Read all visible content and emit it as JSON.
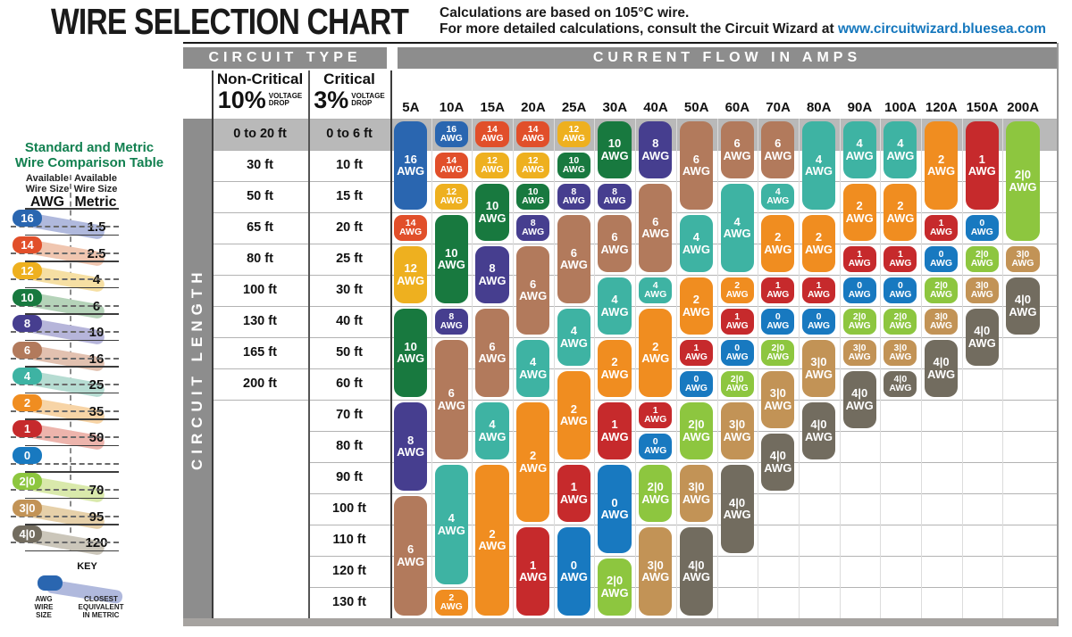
{
  "title": "WIRE SELECTION CHART",
  "subtitle": {
    "line1": "Calculations are based on 105°C wire.",
    "line2_prefix": "For more detailed calculations, consult the Circuit Wizard at ",
    "link": "www.circuitwizard.bluesea.com"
  },
  "header": {
    "circuit_type": "CIRCUIT TYPE",
    "current_flow": "CURRENT FLOW IN AMPS",
    "non_critical_title": "Non-Critical",
    "non_critical_pct": "10%",
    "critical_title": "Critical",
    "critical_pct": "3%",
    "voltage_word": "VOLTAGE",
    "drop_word": "DROP"
  },
  "sidebar": {
    "label": "CIRCUIT LENGTH"
  },
  "colors": {
    "header_bar": "#8d8d8d",
    "row_band": "#b9b9b9",
    "grid_line": "#b3b3b3",
    "link": "#1577bd",
    "comparison_title_green": "#128050",
    "bottom_bar": "#a6a3a0"
  },
  "comparison_table": {
    "title_line1": "Standard and Metric",
    "title_line2": "Wire Comparison Table",
    "header_available": "Available",
    "header_wire_size": "Wire Size",
    "header_awg": "AWG",
    "header_metric": "Metric",
    "rows": [
      {
        "awg": "16",
        "metric": "1.5"
      },
      {
        "awg": "14",
        "metric": "2.5"
      },
      {
        "awg": "12",
        "metric": "4"
      },
      {
        "awg": "10",
        "metric": "6"
      },
      {
        "awg": "8",
        "metric": "10"
      },
      {
        "awg": "6",
        "metric": "16"
      },
      {
        "awg": "4",
        "metric": "25"
      },
      {
        "awg": "2",
        "metric": "35"
      },
      {
        "awg": "1",
        "metric": "50"
      },
      {
        "awg": "0",
        "metric": ""
      },
      {
        "awg": "2|0",
        "metric": "70"
      },
      {
        "awg": "3|0",
        "metric": "95"
      },
      {
        "awg": "4|0",
        "metric": "120"
      }
    ],
    "key": {
      "title": "KEY",
      "awg_line1": "AWG",
      "awg_line2": "WIRE",
      "awg_line3": "SIZE",
      "metric_line1": "CLOSEST",
      "metric_line2": "EQUIVALENT",
      "metric_line3": "IN METRIC"
    }
  },
  "chart_data": {
    "type": "table",
    "title": "WIRE SELECTION CHART",
    "xlabel": "CURRENT FLOW IN AMPS",
    "ylabel": "CIRCUIT LENGTH",
    "amp_columns": [
      "5A",
      "10A",
      "15A",
      "20A",
      "25A",
      "30A",
      "40A",
      "50A",
      "60A",
      "70A",
      "80A",
      "90A",
      "100A",
      "120A",
      "150A",
      "200A"
    ],
    "non_critical_lengths": [
      "0 to 20 ft",
      "30 ft",
      "50 ft",
      "65 ft",
      "80 ft",
      "100 ft",
      "130 ft",
      "165 ft",
      "200 ft"
    ],
    "critical_lengths": [
      "0 to 6 ft",
      "10 ft",
      "15 ft",
      "20 ft",
      "25 ft",
      "30 ft",
      "40 ft",
      "50 ft",
      "60 ft",
      "70 ft",
      "80 ft",
      "90 ft",
      "100 ft",
      "110 ft",
      "120 ft",
      "130 ft"
    ],
    "awg_unit_label": "AWG",
    "wire_colors": {
      "16": "#2a66b0",
      "14": "#e14f2a",
      "12": "#eeb01f",
      "10": "#18793f",
      "8": "#463e8f",
      "6": "#b27a5c",
      "4": "#3eb3a3",
      "2": "#f08d20",
      "1": "#c62a2c",
      "0": "#1879c0",
      "2|0": "#8dc63f",
      "3|0": "#c29356",
      "4|0": "#726c5f"
    },
    "wire_tints": {
      "16": "#b0b9dd",
      "14": "#f0c6b0",
      "12": "#f6dfa3",
      "10": "#b5d3b9",
      "8": "#b6b5da",
      "6": "#e2c1b0",
      "4": "#b6dcd2",
      "2": "#f7d4a6",
      "1": "#edb4ac",
      "0": "#abc6e6",
      "2|0": "#d9e9ab",
      "3|0": "#e6d0a9",
      "4|0": "#cbc6ba"
    },
    "columns": [
      {
        "amps": "5A",
        "segments": [
          {
            "awg": "16",
            "from": 1,
            "to": 3
          },
          {
            "awg": "14",
            "from": 4,
            "to": 4
          },
          {
            "awg": "12",
            "from": 5,
            "to": 6
          },
          {
            "awg": "10",
            "from": 7,
            "to": 9
          },
          {
            "awg": "8",
            "from": 10,
            "to": 12
          },
          {
            "awg": "6",
            "from": 13,
            "to": 16
          }
        ]
      },
      {
        "amps": "10A",
        "segments": [
          {
            "awg": "16",
            "from": 1,
            "to": 1
          },
          {
            "awg": "14",
            "from": 2,
            "to": 2
          },
          {
            "awg": "12",
            "from": 3,
            "to": 3
          },
          {
            "awg": "10",
            "from": 4,
            "to": 6
          },
          {
            "awg": "8",
            "from": 7,
            "to": 7
          },
          {
            "awg": "6",
            "from": 8,
            "to": 11
          },
          {
            "awg": "4",
            "from": 12,
            "to": 15
          },
          {
            "awg": "2",
            "from": 16,
            "to": 16
          }
        ]
      },
      {
        "amps": "15A",
        "segments": [
          {
            "awg": "14",
            "from": 1,
            "to": 1
          },
          {
            "awg": "12",
            "from": 2,
            "to": 2
          },
          {
            "awg": "10",
            "from": 3,
            "to": 4
          },
          {
            "awg": "8",
            "from": 5,
            "to": 6
          },
          {
            "awg": "6",
            "from": 7,
            "to": 9
          },
          {
            "awg": "4",
            "from": 10,
            "to": 11
          },
          {
            "awg": "2",
            "from": 12,
            "to": 16
          }
        ]
      },
      {
        "amps": "20A",
        "segments": [
          {
            "awg": "14",
            "from": 1,
            "to": 1
          },
          {
            "awg": "12",
            "from": 2,
            "to": 2
          },
          {
            "awg": "10",
            "from": 3,
            "to": 3
          },
          {
            "awg": "8",
            "from": 4,
            "to": 4
          },
          {
            "awg": "6",
            "from": 5,
            "to": 7
          },
          {
            "awg": "4",
            "from": 8,
            "to": 9
          },
          {
            "awg": "2",
            "from": 10,
            "to": 13
          },
          {
            "awg": "1",
            "from": 14,
            "to": 16
          }
        ]
      },
      {
        "amps": "25A",
        "segments": [
          {
            "awg": "12",
            "from": 1,
            "to": 1
          },
          {
            "awg": "10",
            "from": 2,
            "to": 2
          },
          {
            "awg": "8",
            "from": 3,
            "to": 3
          },
          {
            "awg": "6",
            "from": 4,
            "to": 6
          },
          {
            "awg": "4",
            "from": 7,
            "to": 8
          },
          {
            "awg": "2",
            "from": 9,
            "to": 11
          },
          {
            "awg": "1",
            "from": 12,
            "to": 13
          },
          {
            "awg": "0",
            "from": 14,
            "to": 16
          }
        ]
      },
      {
        "amps": "30A",
        "segments": [
          {
            "awg": "10",
            "from": 1,
            "to": 2
          },
          {
            "awg": "8",
            "from": 3,
            "to": 3
          },
          {
            "awg": "6",
            "from": 4,
            "to": 5
          },
          {
            "awg": "4",
            "from": 6,
            "to": 7
          },
          {
            "awg": "2",
            "from": 8,
            "to": 9
          },
          {
            "awg": "1",
            "from": 10,
            "to": 11
          },
          {
            "awg": "0",
            "from": 12,
            "to": 14
          },
          {
            "awg": "2|0",
            "from": 15,
            "to": 16
          }
        ]
      },
      {
        "amps": "40A",
        "segments": [
          {
            "awg": "8",
            "from": 1,
            "to": 2
          },
          {
            "awg": "6",
            "from": 3,
            "to": 5
          },
          {
            "awg": "4",
            "from": 6,
            "to": 6
          },
          {
            "awg": "2",
            "from": 7,
            "to": 9
          },
          {
            "awg": "1",
            "from": 10,
            "to": 10
          },
          {
            "awg": "0",
            "from": 11,
            "to": 11
          },
          {
            "awg": "2|0",
            "from": 12,
            "to": 13
          },
          {
            "awg": "3|0",
            "from": 14,
            "to": 16
          }
        ]
      },
      {
        "amps": "50A",
        "segments": [
          {
            "awg": "6",
            "from": 1,
            "to": 3
          },
          {
            "awg": "4",
            "from": 4,
            "to": 5
          },
          {
            "awg": "2",
            "from": 6,
            "to": 7
          },
          {
            "awg": "1",
            "from": 8,
            "to": 8
          },
          {
            "awg": "0",
            "from": 9,
            "to": 9
          },
          {
            "awg": "2|0",
            "from": 10,
            "to": 11
          },
          {
            "awg": "3|0",
            "from": 12,
            "to": 13
          },
          {
            "awg": "4|0",
            "from": 14,
            "to": 16
          }
        ]
      },
      {
        "amps": "60A",
        "segments": [
          {
            "awg": "6",
            "from": 1,
            "to": 2
          },
          {
            "awg": "4",
            "from": 3,
            "to": 5
          },
          {
            "awg": "2",
            "from": 6,
            "to": 6
          },
          {
            "awg": "1",
            "from": 7,
            "to": 7
          },
          {
            "awg": "0",
            "from": 8,
            "to": 8
          },
          {
            "awg": "2|0",
            "from": 9,
            "to": 9
          },
          {
            "awg": "3|0",
            "from": 10,
            "to": 11
          },
          {
            "awg": "4|0",
            "from": 12,
            "to": 14
          }
        ]
      },
      {
        "amps": "70A",
        "segments": [
          {
            "awg": "6",
            "from": 1,
            "to": 2
          },
          {
            "awg": "4",
            "from": 3,
            "to": 3
          },
          {
            "awg": "2",
            "from": 4,
            "to": 5
          },
          {
            "awg": "1",
            "from": 6,
            "to": 6
          },
          {
            "awg": "0",
            "from": 7,
            "to": 7
          },
          {
            "awg": "2|0",
            "from": 8,
            "to": 8
          },
          {
            "awg": "3|0",
            "from": 9,
            "to": 10
          },
          {
            "awg": "4|0",
            "from": 11,
            "to": 12
          }
        ]
      },
      {
        "amps": "80A",
        "segments": [
          {
            "awg": "4",
            "from": 1,
            "to": 3
          },
          {
            "awg": "2",
            "from": 4,
            "to": 5
          },
          {
            "awg": "1",
            "from": 6,
            "to": 6
          },
          {
            "awg": "0",
            "from": 7,
            "to": 7
          },
          {
            "awg": "3|0",
            "from": 8,
            "to": 9
          },
          {
            "awg": "4|0",
            "from": 10,
            "to": 11
          }
        ]
      },
      {
        "amps": "90A",
        "segments": [
          {
            "awg": "4",
            "from": 1,
            "to": 2
          },
          {
            "awg": "2",
            "from": 3,
            "to": 4
          },
          {
            "awg": "1",
            "from": 5,
            "to": 5
          },
          {
            "awg": "0",
            "from": 6,
            "to": 6
          },
          {
            "awg": "2|0",
            "from": 7,
            "to": 7
          },
          {
            "awg": "3|0",
            "from": 8,
            "to": 8
          },
          {
            "awg": "4|0",
            "from": 9,
            "to": 10
          }
        ]
      },
      {
        "amps": "100A",
        "segments": [
          {
            "awg": "4",
            "from": 1,
            "to": 2
          },
          {
            "awg": "2",
            "from": 3,
            "to": 4
          },
          {
            "awg": "1",
            "from": 5,
            "to": 5
          },
          {
            "awg": "0",
            "from": 6,
            "to": 6
          },
          {
            "awg": "2|0",
            "from": 7,
            "to": 7
          },
          {
            "awg": "3|0",
            "from": 8,
            "to": 8
          },
          {
            "awg": "4|0",
            "from": 9,
            "to": 9
          }
        ]
      },
      {
        "amps": "120A",
        "segments": [
          {
            "awg": "2",
            "from": 1,
            "to": 3
          },
          {
            "awg": "1",
            "from": 4,
            "to": 4
          },
          {
            "awg": "0",
            "from": 5,
            "to": 5
          },
          {
            "awg": "2|0",
            "from": 6,
            "to": 6
          },
          {
            "awg": "3|0",
            "from": 7,
            "to": 7
          },
          {
            "awg": "4|0",
            "from": 8,
            "to": 9
          }
        ]
      },
      {
        "amps": "150A",
        "segments": [
          {
            "awg": "1",
            "from": 1,
            "to": 3
          },
          {
            "awg": "0",
            "from": 4,
            "to": 4
          },
          {
            "awg": "2|0",
            "from": 5,
            "to": 5
          },
          {
            "awg": "3|0",
            "from": 6,
            "to": 6
          },
          {
            "awg": "4|0",
            "from": 7,
            "to": 8
          }
        ]
      },
      {
        "amps": "200A",
        "segments": [
          {
            "awg": "2|0",
            "from": 1,
            "to": 4
          },
          {
            "awg": "3|0",
            "from": 5,
            "to": 5
          },
          {
            "awg": "4|0",
            "from": 6,
            "to": 7
          }
        ]
      }
    ]
  }
}
